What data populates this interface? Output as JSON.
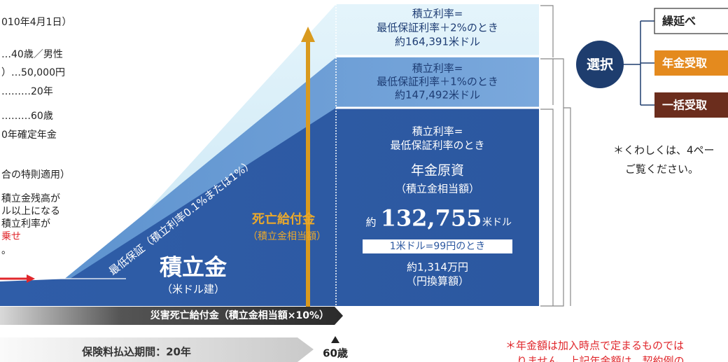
{
  "left_panel": {
    "lines": [
      "010年4月1日）",
      "…40歳／男性",
      "）…50,000円",
      "………20年",
      "………60歳",
      "0年確定年金",
      "合の特則適用）",
      "積立金残高が",
      "ル以上になる",
      "積立利率が",
      "乗せ",
      "。"
    ]
  },
  "diagram": {
    "tiers": [
      {
        "lines": [
          "積立利率=",
          "最低保証利率＋2%のとき",
          "約164,391米ドル"
        ]
      },
      {
        "lines": [
          "積立利率=",
          "最低保証利率＋1%のとき",
          "約147,492米ドル"
        ]
      },
      {
        "condition": [
          "積立利率=",
          "最低保証利率のとき"
        ],
        "heading": "年金原資",
        "subheading": "（積立金相当額）",
        "amount_prefix": "約",
        "amount": "132,755",
        "amount_unit": "米ドル",
        "rate_note": "1米ドル=99円のとき",
        "yen_amount": "約1,314万円",
        "yen_note": "（円換算額）"
      }
    ],
    "slope_label": "最低保証（積立利率0.1%または1%）",
    "death_benefit": [
      "死亡給付金",
      "（積立金相当額）"
    ],
    "fund": [
      "積立金",
      "（米ドル建）"
    ],
    "disaster_benefit": "災害死亡給付金（積立金相当額×10%）",
    "period": "保険料払込期間：20年",
    "age": "60歳"
  },
  "selection": {
    "label": "選択",
    "options": [
      "繰延べ",
      "年金受取",
      "一括受取"
    ],
    "note": [
      "＊くわしくは、4ペー",
      "ご覧ください。"
    ]
  },
  "footnote": [
    "＊年金額は加入時点で定まるものでは",
    "りません。上記年金額は、契約例の"
  ]
}
